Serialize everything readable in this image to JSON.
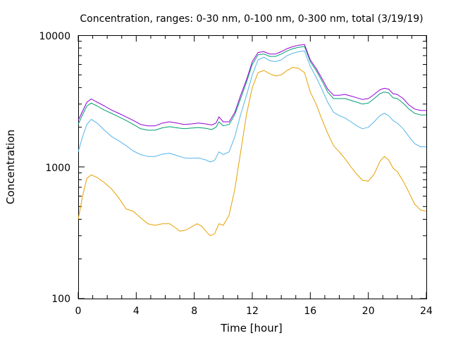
{
  "chart_data": {
    "type": "line",
    "title": "Concentration, ranges: 0-30 nm, 0-100 nm, 0-300 nm, total (3/19/19)",
    "xlabel": "Time [hour]",
    "ylabel": "Concentration",
    "xlim": [
      0,
      24
    ],
    "ylim": [
      100,
      10000
    ],
    "yscale": "log",
    "x_ticks": [
      "0",
      "4",
      "8",
      "12",
      "16",
      "20",
      "24"
    ],
    "y_ticks": [
      "100",
      "1000",
      "10000"
    ],
    "grid": false,
    "legend": "none",
    "series": [
      {
        "color": "#e69f00",
        "points": [
          [
            0,
            400
          ],
          [
            0.3,
            600
          ],
          [
            0.6,
            820
          ],
          [
            0.9,
            870
          ],
          [
            1.3,
            830
          ],
          [
            1.8,
            760
          ],
          [
            2.3,
            680
          ],
          [
            2.8,
            580
          ],
          [
            3.3,
            480
          ],
          [
            3.8,
            460
          ],
          [
            4.3,
            410
          ],
          [
            4.8,
            370
          ],
          [
            5.3,
            360
          ],
          [
            5.8,
            370
          ],
          [
            6.3,
            370
          ],
          [
            6.7,
            345
          ],
          [
            7.0,
            325
          ],
          [
            7.4,
            330
          ],
          [
            7.8,
            350
          ],
          [
            8.2,
            370
          ],
          [
            8.5,
            355
          ],
          [
            8.8,
            325
          ],
          [
            9.1,
            300
          ],
          [
            9.4,
            310
          ],
          [
            9.7,
            370
          ],
          [
            10.0,
            360
          ],
          [
            10.4,
            430
          ],
          [
            10.8,
            680
          ],
          [
            11.2,
            1300
          ],
          [
            11.6,
            2500
          ],
          [
            12.0,
            4000
          ],
          [
            12.4,
            5200
          ],
          [
            12.8,
            5400
          ],
          [
            13.2,
            5100
          ],
          [
            13.6,
            4900
          ],
          [
            14.0,
            5000
          ],
          [
            14.4,
            5400
          ],
          [
            14.8,
            5700
          ],
          [
            15.2,
            5600
          ],
          [
            15.6,
            5200
          ],
          [
            16.0,
            3700
          ],
          [
            16.4,
            3000
          ],
          [
            16.8,
            2300
          ],
          [
            17.2,
            1800
          ],
          [
            17.6,
            1450
          ],
          [
            18.0,
            1300
          ],
          [
            18.4,
            1150
          ],
          [
            18.8,
            1000
          ],
          [
            19.2,
            880
          ],
          [
            19.6,
            790
          ],
          [
            20.0,
            780
          ],
          [
            20.4,
            880
          ],
          [
            20.8,
            1100
          ],
          [
            21.1,
            1200
          ],
          [
            21.4,
            1130
          ],
          [
            21.7,
            980
          ],
          [
            22.0,
            920
          ],
          [
            22.4,
            780
          ],
          [
            22.8,
            640
          ],
          [
            23.2,
            520
          ],
          [
            23.6,
            470
          ],
          [
            24.0,
            460
          ]
        ]
      },
      {
        "color": "#56b4e9",
        "points": [
          [
            0,
            1300
          ],
          [
            0.3,
            1700
          ],
          [
            0.6,
            2100
          ],
          [
            0.9,
            2300
          ],
          [
            1.3,
            2150
          ],
          [
            1.8,
            1900
          ],
          [
            2.3,
            1700
          ],
          [
            2.8,
            1580
          ],
          [
            3.3,
            1450
          ],
          [
            3.8,
            1320
          ],
          [
            4.3,
            1240
          ],
          [
            4.8,
            1200
          ],
          [
            5.3,
            1200
          ],
          [
            5.8,
            1250
          ],
          [
            6.3,
            1270
          ],
          [
            6.8,
            1220
          ],
          [
            7.3,
            1170
          ],
          [
            7.8,
            1160
          ],
          [
            8.3,
            1170
          ],
          [
            8.8,
            1130
          ],
          [
            9.1,
            1090
          ],
          [
            9.4,
            1120
          ],
          [
            9.7,
            1300
          ],
          [
            10.0,
            1240
          ],
          [
            10.4,
            1300
          ],
          [
            10.8,
            1700
          ],
          [
            11.2,
            2500
          ],
          [
            11.6,
            3500
          ],
          [
            12.0,
            5000
          ],
          [
            12.4,
            6500
          ],
          [
            12.8,
            6800
          ],
          [
            13.2,
            6400
          ],
          [
            13.6,
            6300
          ],
          [
            14.0,
            6500
          ],
          [
            14.4,
            7000
          ],
          [
            14.8,
            7300
          ],
          [
            15.2,
            7500
          ],
          [
            15.6,
            7600
          ],
          [
            16.0,
            5800
          ],
          [
            16.4,
            4800
          ],
          [
            16.8,
            3900
          ],
          [
            17.2,
            3100
          ],
          [
            17.6,
            2600
          ],
          [
            18.0,
            2450
          ],
          [
            18.4,
            2350
          ],
          [
            18.8,
            2200
          ],
          [
            19.2,
            2050
          ],
          [
            19.6,
            1950
          ],
          [
            20.0,
            2000
          ],
          [
            20.4,
            2200
          ],
          [
            20.8,
            2450
          ],
          [
            21.1,
            2550
          ],
          [
            21.4,
            2450
          ],
          [
            21.7,
            2250
          ],
          [
            22.0,
            2150
          ],
          [
            22.4,
            1950
          ],
          [
            22.8,
            1700
          ],
          [
            23.2,
            1500
          ],
          [
            23.6,
            1420
          ],
          [
            24.0,
            1420
          ]
        ]
      },
      {
        "color": "#009e73",
        "points": [
          [
            0,
            2100
          ],
          [
            0.3,
            2500
          ],
          [
            0.6,
            2900
          ],
          [
            0.9,
            3050
          ],
          [
            1.3,
            2900
          ],
          [
            1.8,
            2700
          ],
          [
            2.3,
            2550
          ],
          [
            2.8,
            2400
          ],
          [
            3.3,
            2250
          ],
          [
            3.8,
            2100
          ],
          [
            4.3,
            1950
          ],
          [
            4.8,
            1900
          ],
          [
            5.3,
            1900
          ],
          [
            5.8,
            1980
          ],
          [
            6.3,
            2020
          ],
          [
            6.8,
            1980
          ],
          [
            7.3,
            1950
          ],
          [
            7.8,
            1970
          ],
          [
            8.3,
            1990
          ],
          [
            8.8,
            1960
          ],
          [
            9.2,
            1920
          ],
          [
            9.5,
            2000
          ],
          [
            9.7,
            2200
          ],
          [
            10.0,
            2050
          ],
          [
            10.4,
            2100
          ],
          [
            10.8,
            2500
          ],
          [
            11.2,
            3300
          ],
          [
            11.6,
            4400
          ],
          [
            12.0,
            6000
          ],
          [
            12.4,
            7100
          ],
          [
            12.8,
            7200
          ],
          [
            13.2,
            6900
          ],
          [
            13.6,
            6900
          ],
          [
            14.0,
            7200
          ],
          [
            14.4,
            7600
          ],
          [
            14.8,
            7900
          ],
          [
            15.2,
            8100
          ],
          [
            15.6,
            8200
          ],
          [
            16.0,
            6300
          ],
          [
            16.4,
            5400
          ],
          [
            16.8,
            4500
          ],
          [
            17.2,
            3700
          ],
          [
            17.6,
            3300
          ],
          [
            18.0,
            3300
          ],
          [
            18.4,
            3300
          ],
          [
            18.8,
            3200
          ],
          [
            19.2,
            3100
          ],
          [
            19.6,
            3000
          ],
          [
            20.0,
            3050
          ],
          [
            20.4,
            3300
          ],
          [
            20.8,
            3600
          ],
          [
            21.1,
            3700
          ],
          [
            21.4,
            3650
          ],
          [
            21.7,
            3350
          ],
          [
            22.0,
            3300
          ],
          [
            22.4,
            3050
          ],
          [
            22.8,
            2750
          ],
          [
            23.2,
            2550
          ],
          [
            23.6,
            2480
          ],
          [
            24.0,
            2480
          ]
        ]
      },
      {
        "color": "#9400d3",
        "points": [
          [
            0,
            2250
          ],
          [
            0.3,
            2650
          ],
          [
            0.6,
            3100
          ],
          [
            0.9,
            3280
          ],
          [
            1.3,
            3100
          ],
          [
            1.8,
            2900
          ],
          [
            2.3,
            2700
          ],
          [
            2.8,
            2550
          ],
          [
            3.3,
            2400
          ],
          [
            3.8,
            2250
          ],
          [
            4.3,
            2100
          ],
          [
            4.8,
            2050
          ],
          [
            5.3,
            2050
          ],
          [
            5.8,
            2150
          ],
          [
            6.3,
            2200
          ],
          [
            6.8,
            2150
          ],
          [
            7.3,
            2100
          ],
          [
            7.8,
            2120
          ],
          [
            8.3,
            2150
          ],
          [
            8.8,
            2120
          ],
          [
            9.2,
            2080
          ],
          [
            9.5,
            2150
          ],
          [
            9.7,
            2400
          ],
          [
            10.0,
            2200
          ],
          [
            10.4,
            2200
          ],
          [
            10.8,
            2600
          ],
          [
            11.2,
            3500
          ],
          [
            11.6,
            4600
          ],
          [
            12.0,
            6300
          ],
          [
            12.4,
            7400
          ],
          [
            12.8,
            7500
          ],
          [
            13.2,
            7200
          ],
          [
            13.6,
            7200
          ],
          [
            14.0,
            7500
          ],
          [
            14.4,
            7900
          ],
          [
            14.8,
            8200
          ],
          [
            15.2,
            8400
          ],
          [
            15.6,
            8500
          ],
          [
            16.0,
            6500
          ],
          [
            16.4,
            5600
          ],
          [
            16.8,
            4700
          ],
          [
            17.2,
            3900
          ],
          [
            17.6,
            3500
          ],
          [
            18.0,
            3500
          ],
          [
            18.4,
            3550
          ],
          [
            18.8,
            3450
          ],
          [
            19.2,
            3350
          ],
          [
            19.6,
            3250
          ],
          [
            20.0,
            3300
          ],
          [
            20.4,
            3550
          ],
          [
            20.8,
            3850
          ],
          [
            21.1,
            3950
          ],
          [
            21.4,
            3900
          ],
          [
            21.7,
            3600
          ],
          [
            22.0,
            3550
          ],
          [
            22.4,
            3300
          ],
          [
            22.8,
            2950
          ],
          [
            23.2,
            2750
          ],
          [
            23.6,
            2680
          ],
          [
            24.0,
            2680
          ]
        ]
      }
    ]
  }
}
